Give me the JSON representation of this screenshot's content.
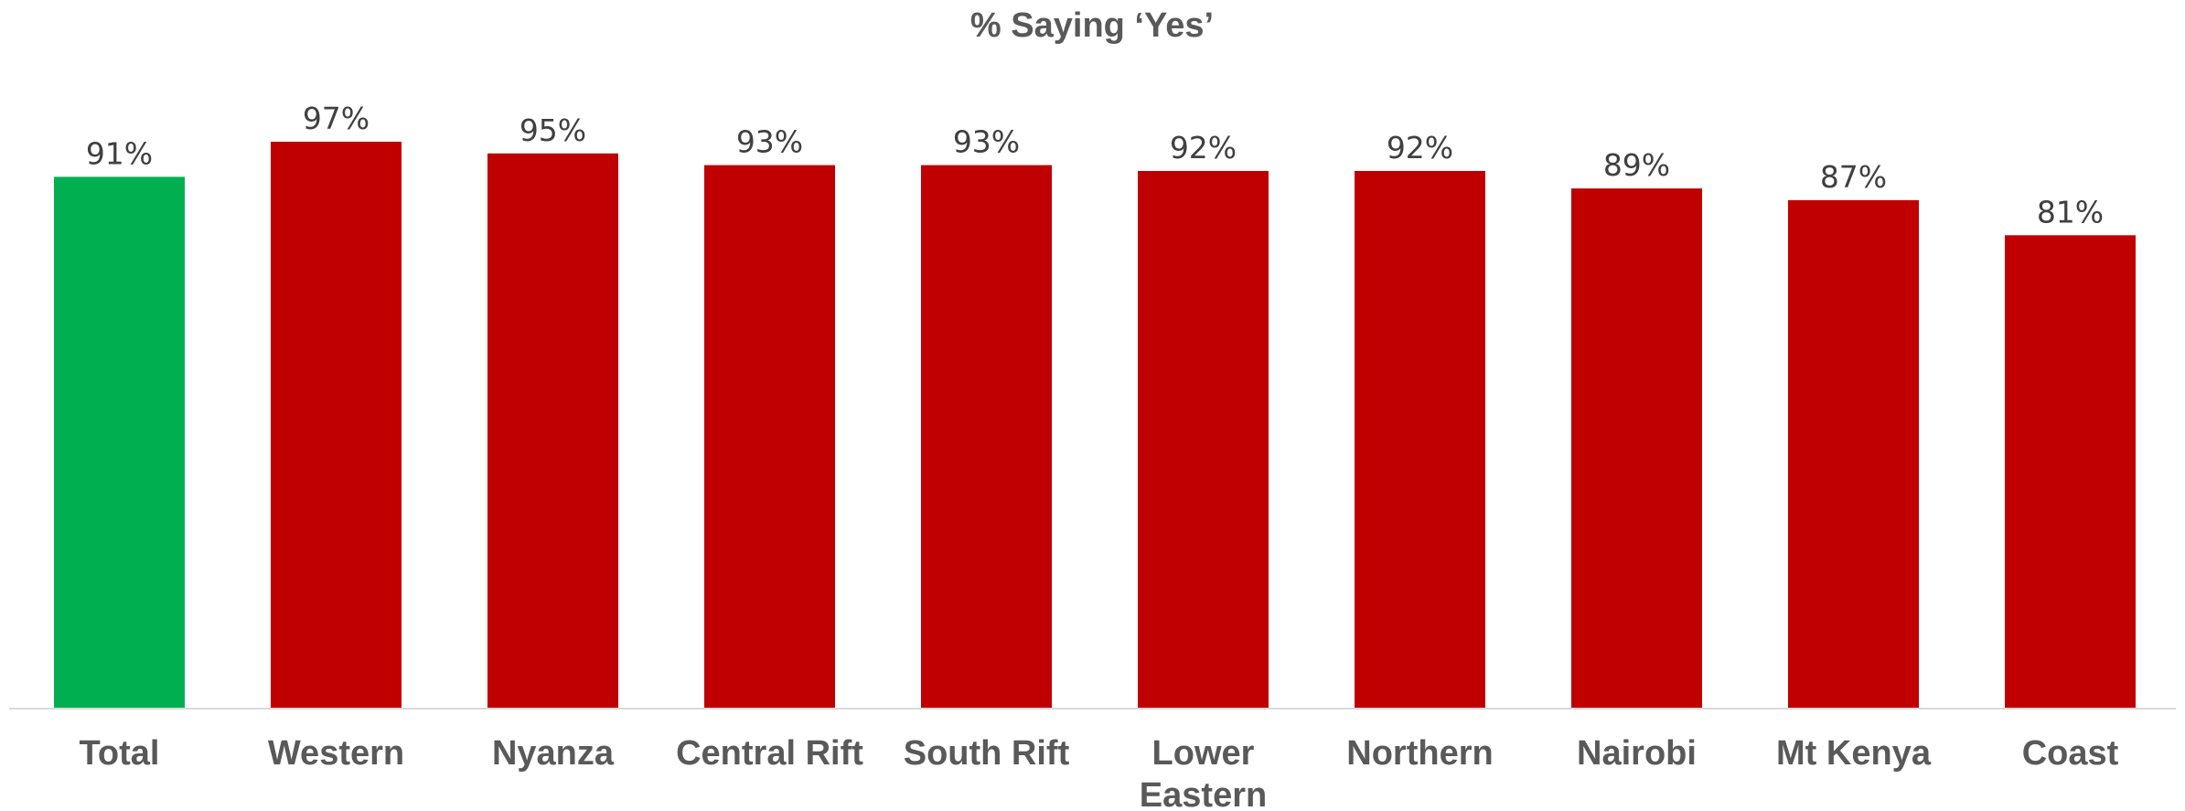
{
  "chart_data": {
    "type": "bar",
    "title": "% Saying ‘Yes’",
    "categories": [
      "Total",
      "Western",
      "Nyanza",
      "Central Rift",
      "South Rift",
      "Lower Eastern",
      "Northern",
      "Nairobi",
      "Mt Kenya",
      "Coast"
    ],
    "category_lines": [
      [
        "Total"
      ],
      [
        "Western"
      ],
      [
        "Nyanza"
      ],
      [
        "Central Rift"
      ],
      [
        "South Rift"
      ],
      [
        "Lower",
        "Eastern"
      ],
      [
        "Northern"
      ],
      [
        "Nairobi"
      ],
      [
        "Mt Kenya"
      ],
      [
        "Coast"
      ]
    ],
    "values": [
      91,
      97,
      95,
      93,
      93,
      92,
      92,
      89,
      87,
      81
    ],
    "value_labels": [
      "91%",
      "97%",
      "95%",
      "93%",
      "93%",
      "92%",
      "92%",
      "89%",
      "87%",
      "81%"
    ],
    "ylim": [
      0,
      100
    ],
    "grid": false,
    "legend": "none",
    "colors": {
      "highlight": "#00b050",
      "bar": "#c00000",
      "axis": "#d9d9d9",
      "title": "#595959",
      "label": "#404040"
    },
    "highlight_index": 0
  }
}
